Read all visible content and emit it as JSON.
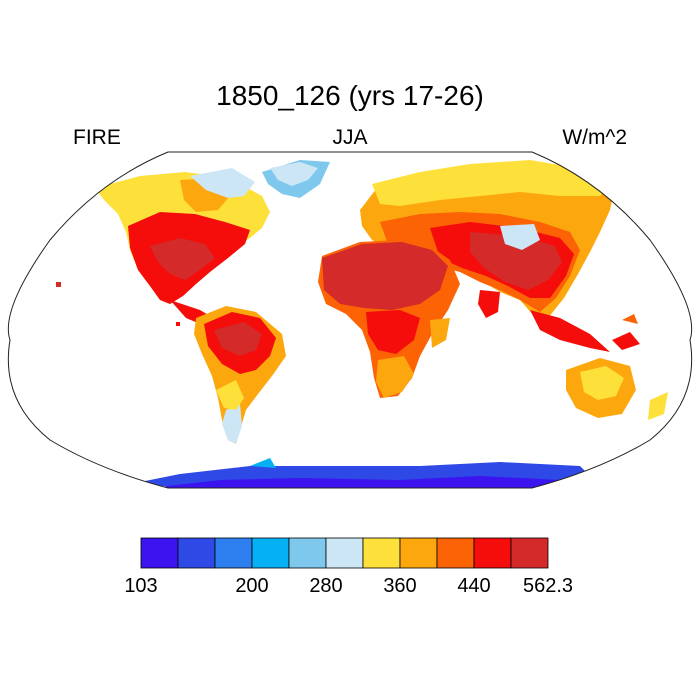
{
  "title": "1850_126 (yrs 17-26)",
  "left_label": "FIRE",
  "center_label": "JJA",
  "right_label": "W/m^2",
  "map": {
    "projection": "Robinson",
    "fill": "surface radiative flux over land",
    "ocean_color": "#ffffff"
  },
  "legend": {
    "colors": [
      "#3c14f0",
      "#2f49e6",
      "#2d7ff0",
      "#05b0f5",
      "#7ec8ee",
      "#cce6f5",
      "#fde03a",
      "#fda70e",
      "#fb6305",
      "#f40d0a",
      "#d42a2a"
    ],
    "tick_labels": [
      "103",
      "200",
      "280",
      "360",
      "440",
      "562.3"
    ],
    "tick_positions": [
      0,
      3,
      5,
      7,
      9,
      11
    ]
  }
}
